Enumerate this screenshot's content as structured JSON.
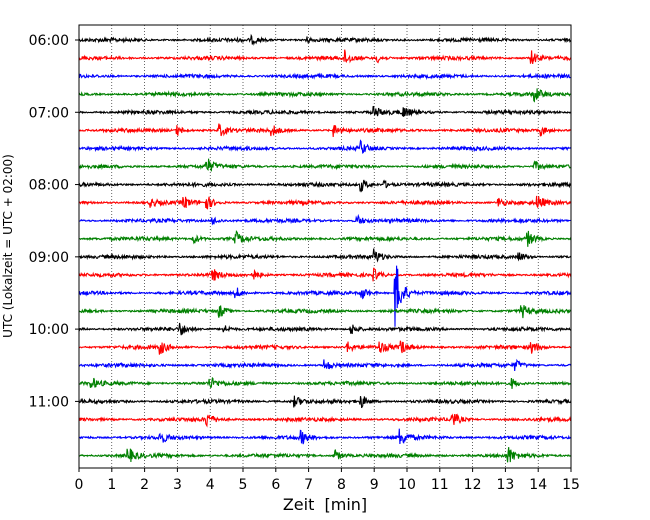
{
  "chart_data": {
    "type": "line",
    "subtype": "helicorder",
    "title": "",
    "xlabel": "Zeit  [min]",
    "ylabel": "UTC (Lokalzeit = UTC + 02:00)",
    "xlim": [
      0,
      15
    ],
    "x_ticks": [
      "0",
      "1",
      "2",
      "3",
      "4",
      "5",
      "6",
      "7",
      "8",
      "9",
      "10",
      "11",
      "12",
      "13",
      "14",
      "15"
    ],
    "y_ticks": [
      "06:00",
      "07:00",
      "08:00",
      "09:00",
      "10:00",
      "11:00"
    ],
    "grid": "vertical dotted at each minute",
    "color_cycle": [
      "#000000",
      "#ff0000",
      "#0000ff",
      "#008000"
    ],
    "traces": [
      {
        "start": "06:00",
        "color": "#000000",
        "events": [
          [
            5.3,
            3
          ],
          [
            6.9,
            4
          ]
        ]
      },
      {
        "start": "06:15",
        "color": "#ff0000",
        "events": [
          [
            8.1,
            7
          ],
          [
            9.1,
            4
          ],
          [
            13.8,
            7
          ]
        ]
      },
      {
        "start": "06:30",
        "color": "#0000ff",
        "events": []
      },
      {
        "start": "06:45",
        "color": "#008000",
        "events": [
          [
            13.9,
            7
          ]
        ]
      },
      {
        "start": "07:00",
        "color": "#000000",
        "events": [
          [
            9.0,
            6
          ],
          [
            9.9,
            5
          ]
        ]
      },
      {
        "start": "07:15",
        "color": "#ff0000",
        "events": [
          [
            3.0,
            5
          ],
          [
            4.3,
            6
          ],
          [
            5.9,
            5
          ],
          [
            7.8,
            6
          ],
          [
            14.1,
            5
          ]
        ]
      },
      {
        "start": "07:30",
        "color": "#0000ff",
        "events": [
          [
            8.6,
            6
          ]
        ]
      },
      {
        "start": "07:45",
        "color": "#008000",
        "events": [
          [
            3.9,
            8
          ],
          [
            13.9,
            5
          ]
        ]
      },
      {
        "start": "08:00",
        "color": "#000000",
        "events": [
          [
            8.6,
            7
          ],
          [
            9.3,
            4
          ]
        ]
      },
      {
        "start": "08:15",
        "color": "#ff0000",
        "events": [
          [
            2.2,
            4
          ],
          [
            3.2,
            6
          ],
          [
            3.9,
            7
          ],
          [
            12.8,
            5
          ],
          [
            14.0,
            6
          ]
        ]
      },
      {
        "start": "08:30",
        "color": "#0000ff",
        "events": [
          [
            4.1,
            4
          ],
          [
            8.5,
            5
          ]
        ]
      },
      {
        "start": "08:45",
        "color": "#008000",
        "events": [
          [
            3.5,
            5
          ],
          [
            4.8,
            6
          ],
          [
            13.7,
            7
          ]
        ]
      },
      {
        "start": "09:00",
        "color": "#000000",
        "events": [
          [
            9.0,
            7
          ],
          [
            13.4,
            5
          ]
        ]
      },
      {
        "start": "09:15",
        "color": "#ff0000",
        "events": [
          [
            4.1,
            5
          ],
          [
            5.3,
            5
          ],
          [
            9.0,
            6
          ]
        ]
      },
      {
        "start": "09:30",
        "color": "#0000ff",
        "events": [
          [
            4.8,
            5
          ],
          [
            8.6,
            7
          ],
          [
            9.65,
            36
          ]
        ]
      },
      {
        "start": "09:45",
        "color": "#008000",
        "events": [
          [
            4.3,
            6
          ],
          [
            13.5,
            7
          ]
        ]
      },
      {
        "start": "10:00",
        "color": "#000000",
        "events": [
          [
            3.1,
            6
          ],
          [
            4.4,
            5
          ],
          [
            8.3,
            6
          ]
        ]
      },
      {
        "start": "10:15",
        "color": "#ff0000",
        "events": [
          [
            2.5,
            6
          ],
          [
            8.2,
            5
          ],
          [
            9.2,
            5
          ],
          [
            9.8,
            7
          ],
          [
            13.8,
            6
          ]
        ]
      },
      {
        "start": "10:30",
        "color": "#0000ff",
        "events": [
          [
            7.5,
            6
          ],
          [
            13.3,
            5
          ]
        ]
      },
      {
        "start": "10:45",
        "color": "#008000",
        "events": [
          [
            0.4,
            5
          ],
          [
            4.0,
            6
          ],
          [
            13.2,
            5
          ]
        ]
      },
      {
        "start": "11:00",
        "color": "#000000",
        "events": [
          [
            6.6,
            5
          ],
          [
            8.6,
            7
          ]
        ]
      },
      {
        "start": "11:15",
        "color": "#ff0000",
        "events": [
          [
            3.9,
            7
          ],
          [
            11.4,
            7
          ]
        ]
      },
      {
        "start": "11:30",
        "color": "#0000ff",
        "events": [
          [
            2.5,
            5
          ],
          [
            6.8,
            6
          ],
          [
            9.8,
            8
          ]
        ]
      },
      {
        "start": "11:45",
        "color": "#008000",
        "events": [
          [
            1.5,
            8
          ],
          [
            7.8,
            6
          ],
          [
            13.1,
            8
          ]
        ]
      }
    ]
  }
}
